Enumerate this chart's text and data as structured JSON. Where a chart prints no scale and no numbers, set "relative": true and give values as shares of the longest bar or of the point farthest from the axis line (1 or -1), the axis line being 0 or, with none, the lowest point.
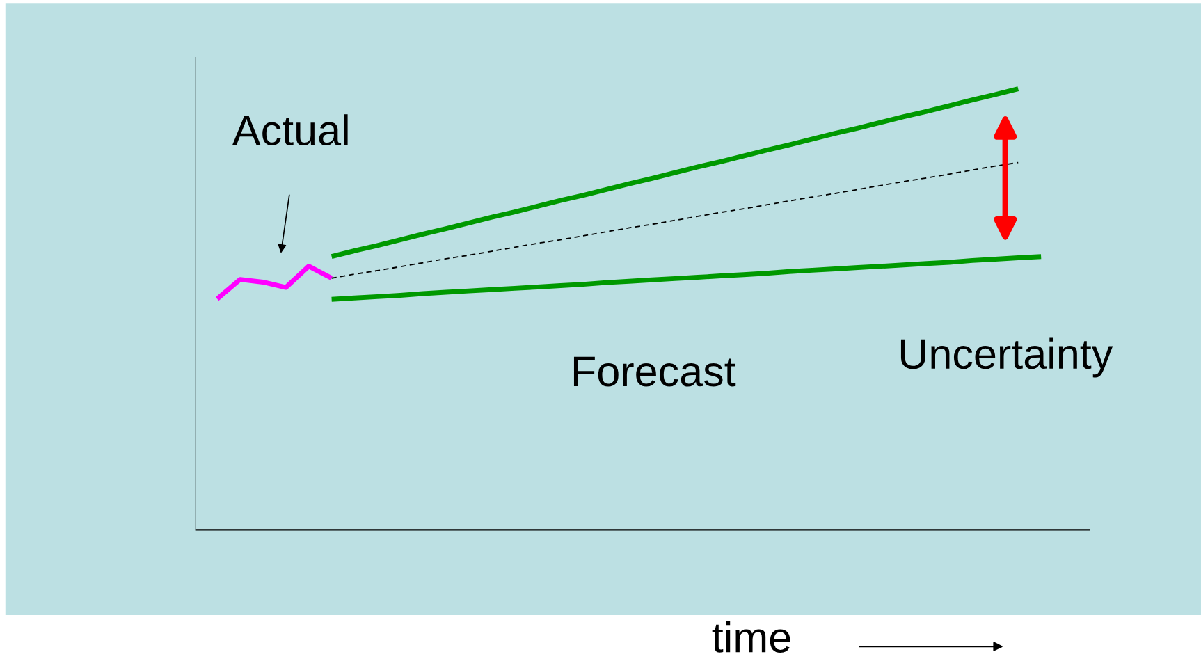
{
  "chart_data": {
    "type": "line",
    "relative": true,
    "xlabel": "time",
    "annotations": [
      "Actual",
      "Forecast",
      "Uncertainty"
    ],
    "categories": [
      null,
      null,
      null,
      null,
      null,
      null,
      null,
      null,
      null,
      null,
      null,
      null,
      null,
      null,
      null,
      null,
      null,
      null,
      null,
      null,
      null,
      null,
      null,
      null,
      null,
      null,
      null,
      null,
      null,
      null,
      null,
      null,
      null,
      null,
      null,
      null,
      null
    ],
    "series": [
      {
        "color": "#ff00ff",
        "line_style": "solid",
        "values": [
          0.524,
          0.568,
          0.562,
          0.55,
          0.598,
          0.571,
          null,
          null,
          null,
          null,
          null,
          null,
          null,
          null,
          null,
          null,
          null,
          null,
          null,
          null,
          null,
          null,
          null,
          null,
          null,
          null,
          null,
          null,
          null,
          null,
          null,
          null,
          null,
          null,
          null,
          null,
          null
        ]
      },
      {
        "color": "#009900",
        "line_style": "solid",
        "values": [
          null,
          null,
          null,
          null,
          null,
          0.62,
          0.633,
          0.645,
          0.658,
          0.671,
          0.683,
          0.696,
          0.709,
          0.721,
          0.734,
          0.747,
          0.759,
          0.772,
          0.785,
          0.797,
          0.81,
          0.823,
          0.835,
          0.848,
          0.861,
          0.873,
          0.886,
          0.899,
          0.911,
          0.924,
          0.937,
          0.949,
          0.962,
          0.975,
          0.987,
          1.0,
          null
        ]
      },
      {
        "color": "#009900",
        "line_style": "solid",
        "values": [
          null,
          null,
          null,
          null,
          null,
          0.523,
          0.526,
          0.529,
          0.532,
          0.536,
          0.539,
          0.542,
          0.545,
          0.548,
          0.551,
          0.554,
          0.557,
          0.561,
          0.564,
          0.567,
          0.57,
          0.573,
          0.576,
          0.579,
          0.582,
          0.586,
          0.589,
          0.592,
          0.595,
          0.598,
          0.601,
          0.604,
          0.607,
          0.611,
          0.614,
          0.617,
          0.62
        ]
      },
      {
        "color": "#000000",
        "line_style": "dashed",
        "values": [
          null,
          null,
          null,
          null,
          null,
          0.571,
          0.58,
          0.588,
          0.597,
          0.606,
          0.615,
          0.623,
          0.632,
          0.641,
          0.65,
          0.658,
          0.667,
          0.676,
          0.685,
          0.693,
          0.702,
          0.711,
          0.72,
          0.728,
          0.737,
          0.746,
          0.755,
          0.763,
          0.772,
          0.781,
          0.79,
          0.798,
          0.807,
          0.816,
          0.825,
          0.833,
          null
        ]
      }
    ]
  }
}
